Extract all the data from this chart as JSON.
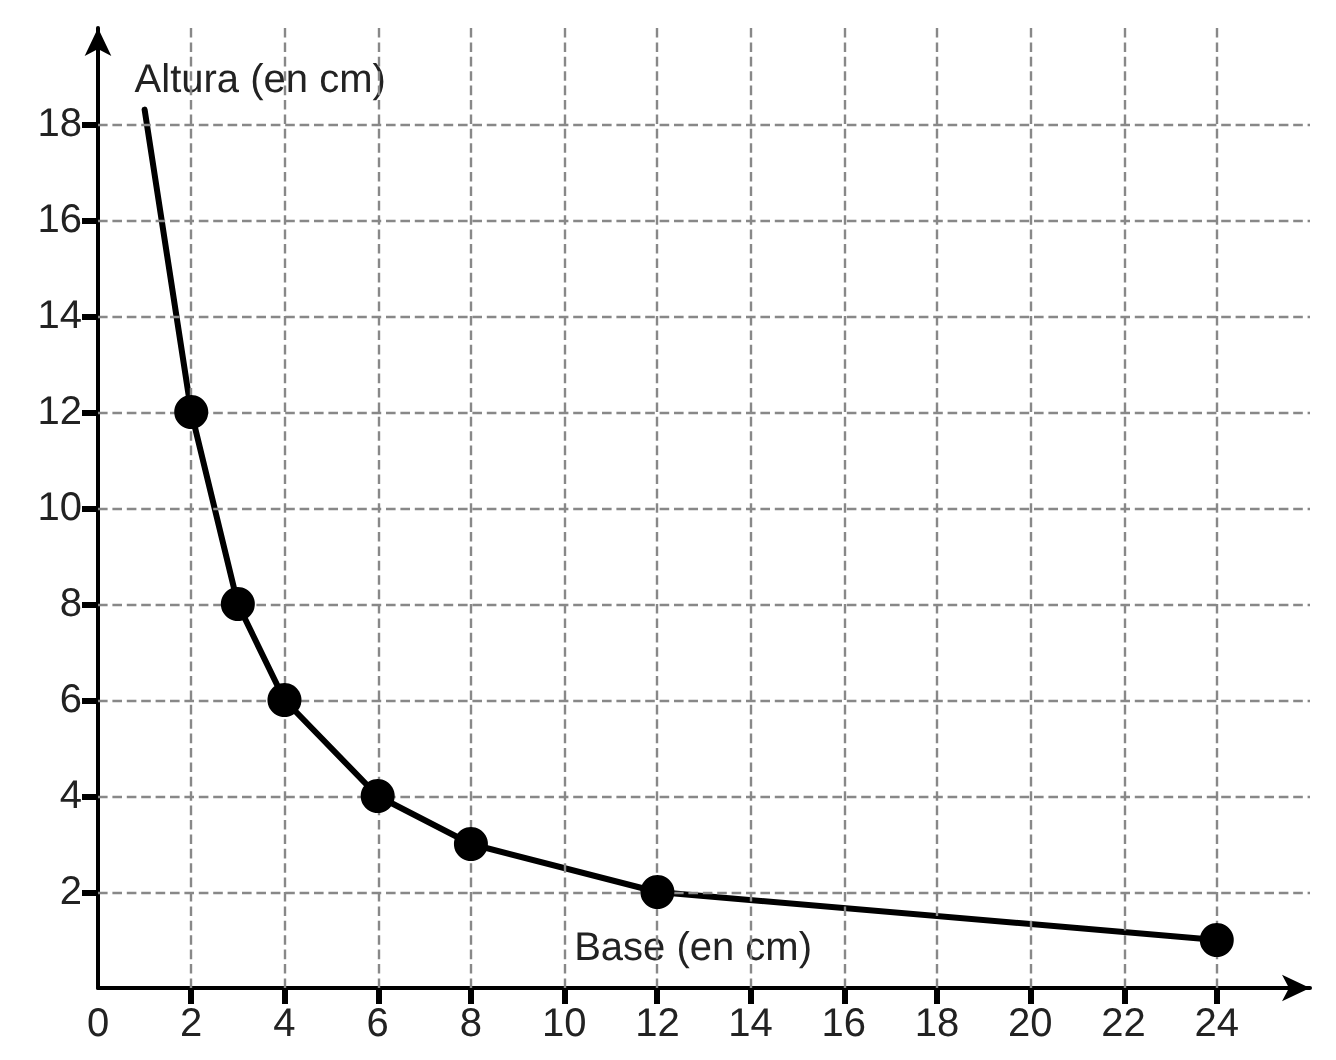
{
  "chart_data": {
    "type": "line",
    "xlabel": "Base (en cm)",
    "ylabel": "Altura (en cm)",
    "series": [
      {
        "color": "#000000",
        "marker": "none",
        "x": [
          1,
          2,
          3,
          4,
          6,
          8,
          12,
          24
        ],
        "values": [
          18.3,
          12,
          8,
          6,
          4,
          3,
          2,
          1
        ]
      },
      {
        "type": "scatter",
        "color": "#000000",
        "marker": "circle",
        "x": [
          2,
          3,
          4,
          6,
          8,
          12,
          24
        ],
        "values": [
          12,
          8,
          6,
          4,
          3,
          2,
          1
        ]
      }
    ],
    "xlim": [
      0,
      26
    ],
    "ylim": [
      0,
      20
    ],
    "xticks": [
      0,
      2,
      4,
      6,
      8,
      10,
      12,
      14,
      16,
      18,
      20,
      22,
      24
    ],
    "yticks": [
      2,
      4,
      6,
      8,
      10,
      12,
      14,
      16,
      18
    ],
    "grid": true,
    "line_style": "solid"
  }
}
